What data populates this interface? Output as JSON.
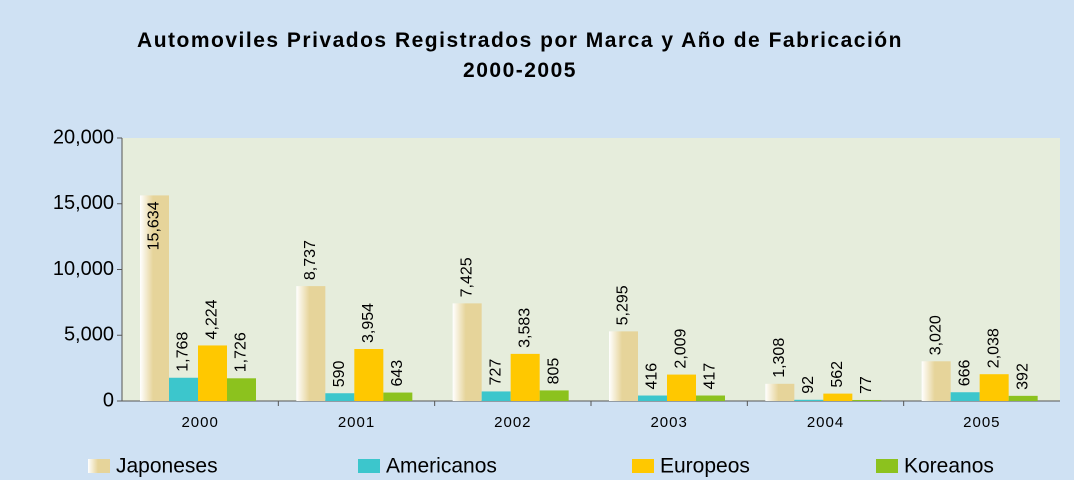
{
  "chart_data": {
    "type": "bar",
    "title": "Automoviles Privados Registrados por Marca y Año de Fabricación 2000-2005",
    "categories": [
      "2000",
      "2001",
      "2002",
      "2003",
      "2004",
      "2005"
    ],
    "series": [
      {
        "name": "Japoneses",
        "color": "#e6d49a",
        "values": [
          15634,
          8737,
          7425,
          5295,
          1308,
          3020
        ],
        "value_labels": [
          "15,634",
          "8,737",
          "7,425",
          "5,295",
          "1,308",
          "3,020"
        ]
      },
      {
        "name": "Americanos",
        "color": "#3cc6cc",
        "values": [
          1768,
          590,
          727,
          416,
          92,
          666
        ],
        "value_labels": [
          "1,768",
          "590",
          "727",
          "416",
          "92",
          "666"
        ]
      },
      {
        "name": "Europeos",
        "color": "#ffc800",
        "values": [
          4224,
          3954,
          3583,
          2009,
          562,
          2038
        ],
        "value_labels": [
          "4,224",
          "3,954",
          "3,583",
          "2,009",
          "562",
          "2,038"
        ]
      },
      {
        "name": "Koreanos",
        "color": "#8cc21e",
        "values": [
          1726,
          643,
          805,
          417,
          77,
          392
        ],
        "value_labels": [
          "1,726",
          "643",
          "805",
          "417",
          "77",
          "392"
        ]
      }
    ],
    "ylim": [
      0,
      20000
    ],
    "yticks": [
      0,
      {
        "value": 5000,
        "label": "5,000"
      },
      {
        "value": 10000,
        "label": "10,000"
      },
      {
        "value": 15000,
        "label": "15,000"
      },
      {
        "value": 20000,
        "label": "20,000"
      }
    ],
    "legend": "bottom"
  }
}
